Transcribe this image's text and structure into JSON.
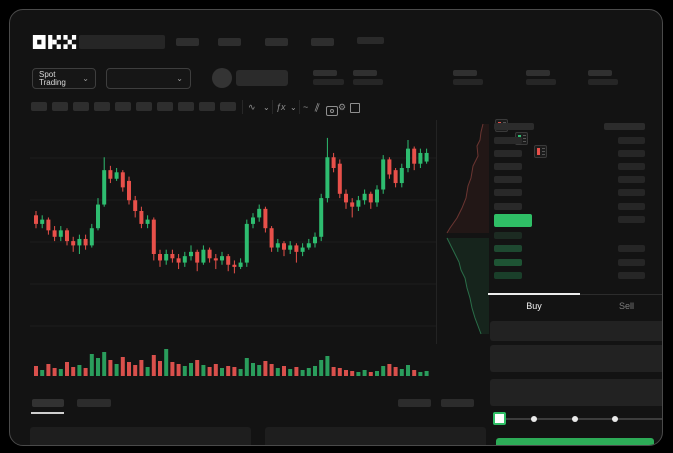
{
  "brand": {
    "name": "OKX"
  },
  "header": {
    "market_selector_label": "Spot Trading",
    "nav_placeholder_count": 4
  },
  "icons": {
    "chevron_down": "⌄",
    "wave": "∿",
    "fx": "ƒx",
    "line": "~",
    "parallel": "∥",
    "gear": "⚙"
  },
  "colors": {
    "up_green": "#2ebd70",
    "down_red": "#e8504a",
    "accent_green": "#2fbf66",
    "buy_button_green": "#2dab57"
  },
  "order_book": {
    "mode_icons": [
      "both-sides-view",
      "bids-only-view",
      "asks-only-view"
    ],
    "ask_row_count": 6,
    "bid_row_count": 4,
    "bid_bar_colors": [
      "#1c2b22",
      "#1e4830",
      "#1e5434",
      "#1a3f2a"
    ]
  },
  "trade_panel": {
    "tabs": [
      {
        "label": "Buy"
      },
      {
        "label": "Sell"
      }
    ],
    "active_tab": "Buy",
    "slider_positions": [
      0,
      25,
      50,
      75,
      100
    ],
    "slider_value": 0
  },
  "chart_data": {
    "type": "candlestick",
    "note": "no numeric axis labels visible; values are relative levels 0-100",
    "title": "",
    "xlabel": "",
    "ylabel": "",
    "grid": true,
    "candles_ochl": [
      [
        58,
        54,
        60,
        52
      ],
      [
        54,
        56,
        58,
        52
      ],
      [
        56,
        51,
        57,
        49
      ],
      [
        51,
        48,
        53,
        46
      ],
      [
        48,
        51,
        53,
        46
      ],
      [
        51,
        46,
        52,
        44
      ],
      [
        46,
        44,
        48,
        41
      ],
      [
        44,
        47,
        49,
        40
      ],
      [
        47,
        44,
        49,
        42
      ],
      [
        44,
        52,
        54,
        43
      ],
      [
        52,
        63,
        66,
        51
      ],
      [
        63,
        79,
        85,
        62
      ],
      [
        79,
        75,
        81,
        73
      ],
      [
        75,
        78,
        80,
        74
      ],
      [
        78,
        71,
        79,
        69
      ],
      [
        74,
        65,
        76,
        63
      ],
      [
        65,
        60,
        67,
        57
      ],
      [
        60,
        54,
        62,
        52
      ],
      [
        54,
        56,
        58,
        52
      ],
      [
        56,
        40,
        57,
        37
      ],
      [
        40,
        37,
        42,
        34
      ],
      [
        37,
        40,
        42,
        35
      ],
      [
        40,
        38,
        42,
        36
      ],
      [
        38,
        36,
        40,
        33
      ],
      [
        36,
        39,
        41,
        34
      ],
      [
        39,
        41,
        44,
        37
      ],
      [
        41,
        36,
        42,
        32
      ],
      [
        36,
        42,
        44,
        35
      ],
      [
        42,
        38,
        43,
        36
      ],
      [
        38,
        37,
        40,
        33
      ],
      [
        37,
        39,
        41,
        35
      ],
      [
        39,
        35,
        40,
        32
      ],
      [
        35,
        34,
        37,
        31
      ],
      [
        34,
        36,
        38,
        33
      ],
      [
        36,
        54,
        56,
        34
      ],
      [
        54,
        57,
        59,
        52
      ],
      [
        57,
        61,
        63,
        55
      ],
      [
        61,
        52,
        62,
        50
      ],
      [
        52,
        43,
        53,
        41
      ],
      [
        43,
        45,
        47,
        41
      ],
      [
        45,
        42,
        46,
        39
      ],
      [
        42,
        44,
        46,
        40
      ],
      [
        44,
        41,
        45,
        36
      ],
      [
        41,
        43,
        45,
        39
      ],
      [
        43,
        45,
        47,
        42
      ],
      [
        45,
        48,
        50,
        43
      ],
      [
        48,
        66,
        68,
        46
      ],
      [
        66,
        85,
        94,
        64
      ],
      [
        85,
        80,
        87,
        78
      ],
      [
        82,
        68,
        84,
        66
      ],
      [
        68,
        64,
        70,
        61
      ],
      [
        64,
        62,
        66,
        57
      ],
      [
        62,
        65,
        67,
        60
      ],
      [
        65,
        68,
        70,
        63
      ],
      [
        68,
        64,
        69,
        61
      ],
      [
        64,
        70,
        72,
        62
      ],
      [
        70,
        84,
        86,
        68
      ],
      [
        84,
        77,
        85,
        75
      ],
      [
        79,
        73,
        80,
        71
      ],
      [
        73,
        80,
        82,
        71
      ],
      [
        80,
        89,
        93,
        78
      ],
      [
        89,
        82,
        90,
        79
      ],
      [
        82,
        87,
        89,
        80
      ],
      [
        83,
        87,
        89,
        82
      ]
    ],
    "volumes": [
      10,
      6,
      12,
      8,
      7,
      14,
      9,
      11,
      8,
      22,
      18,
      24,
      16,
      12,
      19,
      14,
      11,
      16,
      9,
      21,
      15,
      27,
      14,
      12,
      10,
      13,
      16,
      11,
      9,
      12,
      8,
      10,
      9,
      7,
      18,
      13,
      11,
      15,
      12,
      8,
      10,
      7,
      9,
      6,
      8,
      10,
      16,
      20,
      9,
      8,
      6,
      5,
      4,
      6,
      4,
      5,
      10,
      12,
      9,
      7,
      11,
      6,
      4,
      5
    ]
  },
  "depth_chart": {
    "type": "area",
    "asks_line": [
      [
        46,
        4
      ],
      [
        44,
        12
      ],
      [
        43,
        20
      ],
      [
        40,
        26
      ],
      [
        41,
        36
      ],
      [
        36,
        46
      ],
      [
        34,
        58
      ],
      [
        31,
        66
      ],
      [
        29,
        78
      ],
      [
        25,
        88
      ],
      [
        20,
        98
      ],
      [
        13,
        108
      ],
      [
        10,
        113
      ]
    ],
    "bids_line": [
      [
        10,
        118
      ],
      [
        14,
        126
      ],
      [
        18,
        134
      ],
      [
        22,
        142
      ],
      [
        24,
        150
      ],
      [
        28,
        158
      ],
      [
        30,
        168
      ],
      [
        33,
        178
      ],
      [
        35,
        188
      ],
      [
        38,
        198
      ],
      [
        41,
        206
      ],
      [
        44,
        214
      ]
    ]
  }
}
